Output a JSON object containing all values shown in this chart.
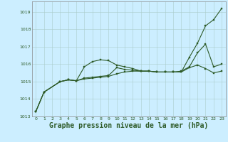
{
  "background_color": "#cceeff",
  "grid_color": "#aacccc",
  "line_color": "#2d5a27",
  "marker_color": "#2d5a27",
  "xlabel": "Graphe pression niveau de la mer (hPa)",
  "xlabel_fontsize": 7,
  "xlim": [
    -0.5,
    23.5
  ],
  "ylim": [
    1013.0,
    1019.6
  ],
  "yticks": [
    1013,
    1014,
    1015,
    1016,
    1017,
    1018,
    1019
  ],
  "xticks": [
    0,
    1,
    2,
    3,
    4,
    5,
    6,
    7,
    8,
    9,
    10,
    11,
    12,
    13,
    14,
    15,
    16,
    17,
    18,
    19,
    20,
    21,
    22,
    23
  ],
  "series": [
    {
      "x": [
        0,
        1,
        3,
        4,
        5,
        6,
        7,
        8,
        9,
        10,
        11,
        12,
        13,
        14,
        15,
        16,
        17,
        18,
        19,
        20,
        21,
        22,
        23
      ],
      "y": [
        1013.3,
        1014.4,
        1015.0,
        1015.1,
        1015.05,
        1015.85,
        1016.15,
        1016.25,
        1016.2,
        1015.95,
        1015.85,
        1015.75,
        1015.6,
        1015.6,
        1015.55,
        1015.55,
        1015.55,
        1015.55,
        1016.4,
        1017.2,
        1018.2,
        1018.55,
        1019.2
      ]
    },
    {
      "x": [
        0,
        1,
        3,
        4,
        5,
        6,
        7,
        8,
        9,
        10,
        11,
        12,
        13,
        14,
        15,
        16,
        17,
        18,
        19,
        20,
        21,
        22,
        23
      ],
      "y": [
        1013.3,
        1014.4,
        1015.0,
        1015.1,
        1015.05,
        1015.2,
        1015.25,
        1015.3,
        1015.35,
        1015.8,
        1015.7,
        1015.65,
        1015.6,
        1015.6,
        1015.55,
        1015.55,
        1015.55,
        1015.6,
        1015.85,
        1016.65,
        1017.15,
        1015.85,
        1016.0
      ]
    },
    {
      "x": [
        0,
        1,
        3,
        4,
        5,
        6,
        7,
        8,
        9,
        10,
        11,
        12,
        13,
        14,
        15,
        16,
        17,
        18,
        19,
        20,
        21,
        22,
        23
      ],
      "y": [
        1013.3,
        1014.4,
        1015.0,
        1015.1,
        1015.05,
        1015.15,
        1015.2,
        1015.25,
        1015.3,
        1015.45,
        1015.55,
        1015.6,
        1015.6,
        1015.6,
        1015.55,
        1015.55,
        1015.55,
        1015.55,
        1015.8,
        1015.95,
        1015.75,
        1015.5,
        1015.6
      ]
    }
  ]
}
